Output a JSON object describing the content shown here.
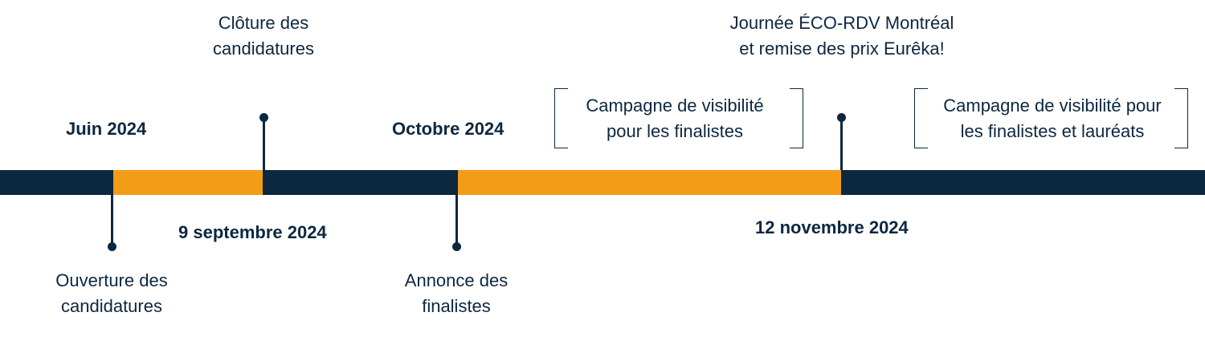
{
  "colors": {
    "primary_dark": "#0c2740",
    "accent_orange": "#f39c17",
    "background": "#ffffff"
  },
  "timeline": {
    "dates": {
      "june": "Juin 2024",
      "september": "9 septembre 2024",
      "october": "Octobre 2024",
      "november": "12 novembre 2024"
    },
    "events": {
      "ouverture": [
        "Ouverture des",
        "candidatures"
      ],
      "cloture": [
        "Clôture des",
        "candidatures"
      ],
      "annonce": [
        "Annonce des",
        "finalistes"
      ],
      "journee": [
        "Journée ÉCO-RDV Montréal",
        "et remise des prix Eurêka!"
      ]
    },
    "campaigns": {
      "finalists": [
        "Campagne de visibilité",
        "pour les finalistes"
      ],
      "laureates": [
        "Campagne de visibilité pour",
        "les finalistes et lauréats"
      ]
    }
  }
}
